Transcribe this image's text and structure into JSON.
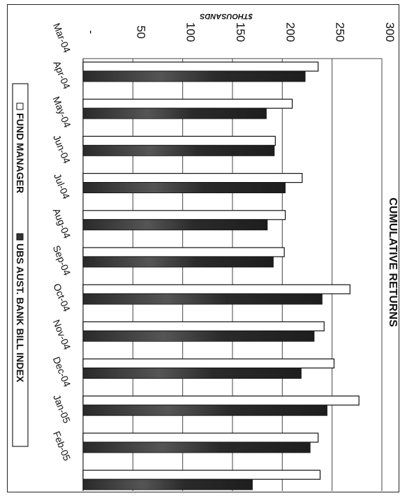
{
  "chart_data": {
    "type": "bar",
    "orientation": "rotated-90-clockwise",
    "title": "CUMULATIVE RETURNS",
    "ylabel": "$THOUSANDS",
    "ylim": [
      0,
      300
    ],
    "yticks": [
      "-",
      "50",
      "100",
      "150",
      "200",
      "250",
      "300"
    ],
    "grid": true,
    "legend_position": "bottom",
    "categories": [
      "Mar-04",
      "Apr-04",
      "May-04",
      "Jun-04",
      "Jul-04",
      "Aug-04",
      "Sep-04",
      "Oct-04",
      "Nov-04",
      "Dec-04",
      "Jan-05",
      "Feb-05"
    ],
    "series": [
      {
        "name": "FUND MANAGER",
        "color": "#ffffff",
        "values": [
          236,
          210,
          193,
          220,
          203,
          202,
          268,
          242,
          252,
          277,
          236,
          238
        ]
      },
      {
        "name": "UBS AUST. BANK BILL INDEX",
        "color": "#262626",
        "values": [
          223,
          184,
          192,
          203,
          185,
          191,
          240,
          232,
          219,
          245,
          228,
          170
        ]
      }
    ]
  }
}
